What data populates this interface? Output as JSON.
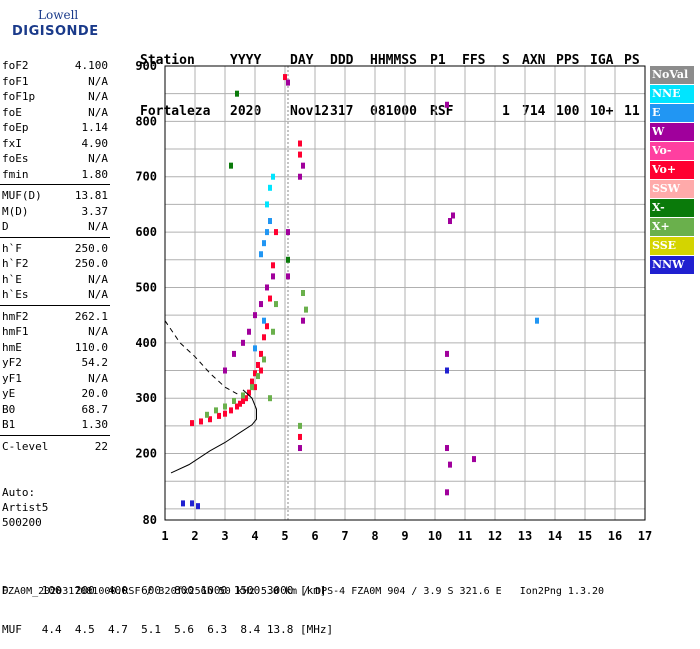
{
  "logo": {
    "line1": "Lowell",
    "line2": "DIGISONDE"
  },
  "header": {
    "row1": [
      "Station",
      "YYYY",
      "DAY",
      "DDD",
      "HHMMSS",
      "P1",
      "FFS",
      "S",
      "AXN",
      "PPS",
      "IGA",
      "PS"
    ],
    "row2": [
      "Fortaleza",
      "2020",
      "Nov12",
      "317",
      "081000",
      "RSF",
      "",
      "1",
      "714",
      "100",
      "10+",
      "11"
    ]
  },
  "params": {
    "group1": [
      {
        "name": "foF2",
        "value": "4.100"
      },
      {
        "name": "foF1",
        "value": "N/A"
      },
      {
        "name": "foF1p",
        "value": "N/A"
      },
      {
        "name": "foE",
        "value": "N/A"
      },
      {
        "name": "foEp",
        "value": "1.14"
      },
      {
        "name": "fxI",
        "value": "4.90"
      },
      {
        "name": "foEs",
        "value": "N/A"
      },
      {
        "name": "fmin",
        "value": "1.80"
      }
    ],
    "group2": [
      {
        "name": "MUF(D)",
        "value": "13.81"
      },
      {
        "name": "M(D)",
        "value": "3.37"
      },
      {
        "name": "D",
        "value": "N/A"
      }
    ],
    "group3": [
      {
        "name": "h`F",
        "value": "250.0"
      },
      {
        "name": "h`F2",
        "value": "250.0"
      },
      {
        "name": "h`E",
        "value": "N/A"
      },
      {
        "name": "h`Es",
        "value": "N/A"
      }
    ],
    "group4": [
      {
        "name": "hmF2",
        "value": "262.1"
      },
      {
        "name": "hmF1",
        "value": "N/A"
      },
      {
        "name": "hmE",
        "value": "110.0"
      },
      {
        "name": "yF2",
        "value": "54.2"
      },
      {
        "name": "yF1",
        "value": "N/A"
      },
      {
        "name": "yE",
        "value": "20.0"
      },
      {
        "name": "B0",
        "value": "68.7"
      },
      {
        "name": "B1",
        "value": "1.30"
      }
    ],
    "group5": [
      {
        "name": "C-level",
        "value": "22"
      }
    ]
  },
  "auto": {
    "line1": "Auto:",
    "line2": "Artist5",
    "line3": "500200"
  },
  "legend": [
    {
      "label": "NoVal",
      "color": "#8c8c8c"
    },
    {
      "label": "NNE",
      "color": "#00e5ff"
    },
    {
      "label": "E",
      "color": "#2196f3"
    },
    {
      "label": "W",
      "color": "#a0009c"
    },
    {
      "label": "Vo-",
      "color": "#ff3fa0"
    },
    {
      "label": "Vo+",
      "color": "#ff0030"
    },
    {
      "label": "SSW",
      "color": "#ffaaaa"
    },
    {
      "label": "X-",
      "color": "#0a7a0a"
    },
    {
      "label": "X+",
      "color": "#6ab04c"
    },
    {
      "label": "SSE",
      "color": "#d4d400"
    },
    {
      "label": "NNW",
      "color": "#2020d0"
    }
  ],
  "footer": {
    "line1": "D     100  200  400  600  800 1000 1500 3000 [km]",
    "line2": "MUF   4.4  4.5  4.7  5.1  5.6  6.3  8.4 13.8 [MHz]",
    "file": "FZA0M_2020317081000.RSF / 320fx256h 50 kHz 5.0 km / DPS-4 FZA0M 904 / 3.9 S 321.6 E   Ion2Png 1.3.20"
  },
  "chart_data": {
    "type": "scatter",
    "title": "",
    "xlabel": "",
    "ylabel": "",
    "xlim": [
      1,
      17
    ],
    "ylim": [
      80,
      900
    ],
    "xticks": [
      "1",
      "2",
      "3",
      "4",
      "5",
      "6",
      "7",
      "8",
      "9",
      "10",
      "11",
      "12",
      "13",
      "14",
      "15",
      "16",
      "17"
    ],
    "yticks": [
      "80",
      "200",
      "300",
      "400",
      "500",
      "600",
      "700",
      "800",
      "900"
    ],
    "grid": true,
    "legend_placement": "right",
    "series": [
      {
        "name": "Vo+",
        "color": "#ff0030",
        "points": [
          [
            1.9,
            255
          ],
          [
            2.2,
            258
          ],
          [
            2.5,
            262
          ],
          [
            2.8,
            268
          ],
          [
            3.0,
            272
          ],
          [
            3.2,
            278
          ],
          [
            3.4,
            285
          ],
          [
            3.6,
            295
          ],
          [
            3.8,
            310
          ],
          [
            3.9,
            330
          ],
          [
            4.0,
            345
          ],
          [
            4.1,
            360
          ],
          [
            4.2,
            380
          ],
          [
            4.3,
            410
          ],
          [
            3.5,
            290
          ],
          [
            3.7,
            300
          ],
          [
            4.0,
            320
          ],
          [
            4.2,
            350
          ],
          [
            4.4,
            430
          ],
          [
            4.5,
            480
          ],
          [
            4.6,
            540
          ],
          [
            4.7,
            600
          ],
          [
            5.5,
            740
          ],
          [
            5.5,
            760
          ],
          [
            5.5,
            230
          ],
          [
            5.0,
            880
          ]
        ]
      },
      {
        "name": "X+",
        "color": "#6ab04c",
        "points": [
          [
            2.4,
            270
          ],
          [
            2.7,
            278
          ],
          [
            3.0,
            285
          ],
          [
            3.3,
            295
          ],
          [
            3.6,
            305
          ],
          [
            3.9,
            320
          ],
          [
            4.1,
            340
          ],
          [
            4.3,
            370
          ],
          [
            4.5,
            300
          ],
          [
            4.6,
            420
          ],
          [
            4.7,
            470
          ],
          [
            5.6,
            490
          ],
          [
            5.7,
            460
          ],
          [
            5.5,
            250
          ]
        ]
      },
      {
        "name": "W",
        "color": "#a0009c",
        "points": [
          [
            3.0,
            350
          ],
          [
            3.3,
            380
          ],
          [
            3.6,
            400
          ],
          [
            3.8,
            420
          ],
          [
            4.0,
            450
          ],
          [
            4.2,
            470
          ],
          [
            4.4,
            500
          ],
          [
            4.6,
            520
          ],
          [
            5.5,
            700
          ],
          [
            5.6,
            720
          ],
          [
            5.5,
            210
          ],
          [
            5.6,
            440
          ],
          [
            10.4,
            830
          ],
          [
            10.4,
            210
          ],
          [
            10.5,
            620
          ],
          [
            10.6,
            630
          ],
          [
            10.4,
            380
          ],
          [
            10.4,
            350
          ],
          [
            10.5,
            180
          ],
          [
            10.4,
            130
          ],
          [
            11.3,
            190
          ],
          [
            5.1,
            870
          ],
          [
            5.1,
            600
          ],
          [
            5.1,
            520
          ]
        ]
      },
      {
        "name": "E",
        "color": "#2196f3",
        "points": [
          [
            4.2,
            560
          ],
          [
            4.3,
            580
          ],
          [
            4.4,
            600
          ],
          [
            4.5,
            620
          ],
          [
            4.0,
            390
          ],
          [
            4.3,
            440
          ],
          [
            13.4,
            440
          ]
        ]
      },
      {
        "name": "NNE",
        "color": "#00e5ff",
        "points": [
          [
            4.4,
            650
          ],
          [
            4.5,
            680
          ],
          [
            4.6,
            700
          ]
        ]
      },
      {
        "name": "NNW",
        "color": "#2020d0",
        "points": [
          [
            1.6,
            110
          ],
          [
            1.9,
            110
          ],
          [
            2.1,
            105
          ],
          [
            10.4,
            350
          ]
        ]
      },
      {
        "name": "X-",
        "color": "#0a7a0a",
        "points": [
          [
            3.2,
            720
          ],
          [
            3.4,
            850
          ],
          [
            5.1,
            550
          ]
        ]
      }
    ],
    "profile_solid": [
      [
        1.2,
        165
      ],
      [
        1.8,
        180
      ],
      [
        2.5,
        205
      ],
      [
        3.0,
        220
      ],
      [
        3.5,
        238
      ],
      [
        3.9,
        252
      ],
      [
        4.05,
        262
      ],
      [
        4.05,
        280
      ],
      [
        3.9,
        300
      ],
      [
        3.6,
        315
      ]
    ],
    "profile_dashed": [
      [
        1.0,
        440
      ],
      [
        1.5,
        400
      ],
      [
        2.0,
        375
      ],
      [
        2.5,
        345
      ],
      [
        3.0,
        320
      ],
      [
        3.5,
        305
      ]
    ]
  }
}
